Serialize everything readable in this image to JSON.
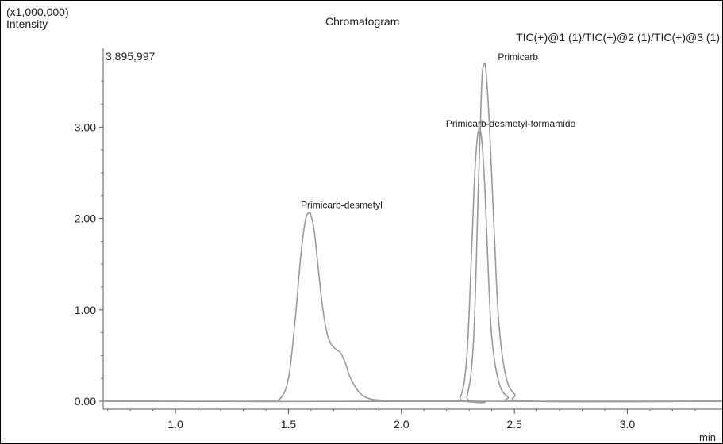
{
  "chart_data": {
    "type": "line",
    "title": "Chromatogram",
    "subtitle": "TIC(+)@1 (1)/TIC(+)@2 (1)/TIC(+)@3 (1)",
    "y_multiplier": "(x1,000,000)",
    "ylabel": "Intensity",
    "xlabel": "min",
    "max_intensity_label": "3,895,997",
    "xlim": [
      0.68,
      3.42
    ],
    "ylim": [
      -0.05,
      3.9
    ],
    "x_ticks": [
      1.0,
      1.5,
      2.0,
      2.5,
      3.0
    ],
    "x_tick_labels": [
      "1.0",
      "1.5",
      "2.0",
      "2.5",
      "3.0"
    ],
    "y_ticks": [
      0.0,
      1.0,
      2.0,
      3.0
    ],
    "y_tick_labels": [
      "0.00",
      "1.00",
      "2.00",
      "3.00"
    ],
    "grid": false,
    "line_color": "#9a9a9a",
    "series": [
      {
        "x": [
          0.68,
          1.4,
          1.46,
          1.5,
          1.53,
          1.555,
          1.575,
          1.59,
          1.6,
          1.615,
          1.63,
          1.65,
          1.67,
          1.69,
          1.71,
          1.73,
          1.75,
          1.77,
          1.8,
          1.83,
          1.87,
          1.92,
          2.0,
          3.42
        ],
        "y": [
          0.0,
          0.0,
          0.02,
          0.25,
          0.9,
          1.6,
          1.98,
          2.06,
          2.03,
          1.85,
          1.5,
          1.05,
          0.75,
          0.62,
          0.57,
          0.53,
          0.43,
          0.28,
          0.14,
          0.06,
          0.02,
          0.01,
          0.0,
          0.0
        ]
      },
      {
        "x": [
          0.68,
          2.2,
          2.26,
          2.29,
          2.31,
          2.325,
          2.34,
          2.355,
          2.37,
          2.385,
          2.4,
          2.43,
          2.47,
          2.55,
          3.42
        ],
        "y": [
          0.0,
          0.0,
          0.04,
          0.5,
          1.6,
          2.5,
          2.95,
          2.88,
          2.3,
          1.4,
          0.7,
          0.22,
          0.05,
          0.0,
          0.0
        ]
      },
      {
        "x": [
          0.68,
          2.24,
          2.29,
          2.32,
          2.34,
          2.355,
          2.365,
          2.375,
          2.39,
          2.41,
          2.43,
          2.46,
          2.5,
          2.58,
          3.42
        ],
        "y": [
          0.0,
          0.0,
          0.05,
          0.7,
          2.3,
          3.45,
          3.68,
          3.6,
          3.0,
          1.9,
          0.9,
          0.3,
          0.08,
          0.0,
          0.0
        ]
      }
    ],
    "annotations": [
      {
        "text": "Primicarb-desmetyl",
        "x": 1.59,
        "y": 2.06
      },
      {
        "text": "Primicarb-desmetyl-formamido",
        "x": 2.32,
        "y": 2.95
      },
      {
        "text": "Primicarb",
        "x": 2.385,
        "y": 3.68
      }
    ]
  }
}
